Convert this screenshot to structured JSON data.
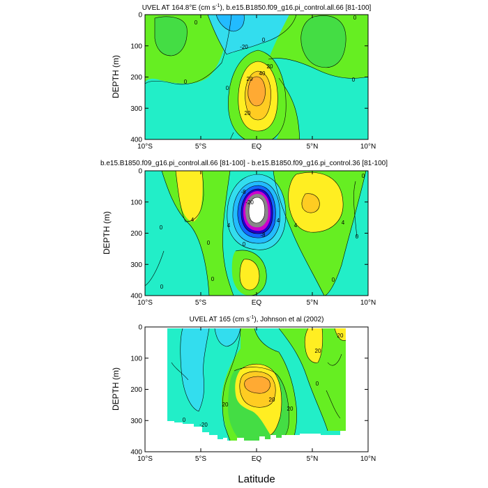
{
  "colors": {
    "green": "#66EE22",
    "light_green": "#44DD44",
    "cyan": "#22EEC8",
    "light_blue": "#33DDEE",
    "sky": "#22BBFF",
    "blue": "#1166FF",
    "dark_blue": "#2200CC",
    "magenta": "#CC00CC",
    "gray": "#888888",
    "white": "#FFFFFF",
    "yellow": "#FFEE22",
    "gold": "#FFCC22",
    "orange": "#FFAA33",
    "dark_orange": "#EE8833"
  },
  "x_axis_label": "Latitude",
  "chart_data": [
    {
      "type": "contour",
      "title": "UVEL AT 164.8°E (cm s⁻¹), b.e15.B1850.f09_g16.pi_control.all.66 [81-100]",
      "title_parts": {
        "a": "UVEL AT 164.8°E (cm s",
        "sup": "-1",
        "b": "), b.e15.B1850.f09_g16.pi_control.all.66 [81-100]"
      },
      "ylabel": "DEPTH (m)",
      "x_ticks": [
        "10°S",
        "5°S",
        "EQ",
        "5°N",
        "10°N"
      ],
      "y_ticks": [
        "0",
        "100",
        "200",
        "300",
        "400"
      ],
      "xlim": [
        -10,
        10
      ],
      "ylim": [
        400,
        0
      ],
      "contour_labels": [
        "0",
        "-20",
        "0",
        "20",
        "40",
        "20",
        "0",
        "20",
        "0"
      ]
    },
    {
      "type": "contour",
      "title": "b.e15.B1850.f09_g16.pi_control.all.66 [81-100] - b.e15.B1850.f09_g16.pi_control.36 [81-100]",
      "ylabel": "DEPTH (m)",
      "x_ticks": [
        "10°S",
        "5°S",
        "EQ",
        "5°N",
        "10°N"
      ],
      "y_ticks": [
        "0",
        "100",
        "200",
        "300",
        "400"
      ],
      "xlim": [
        -10,
        10
      ],
      "ylim": [
        400,
        0
      ],
      "contour_labels": [
        "4",
        "0",
        "0",
        "4",
        "-8",
        "-20",
        "4",
        "-8",
        "0",
        "4",
        "4",
        "0",
        "0",
        "0",
        "0",
        "0"
      ]
    },
    {
      "type": "contour",
      "title": "UVEL AT 165 (cm s⁻¹), Johnson et al (2002)",
      "title_parts": {
        "a": "UVEL AT 165 (cm s",
        "sup": "-1",
        "b": "), Johnson et al (2002)"
      },
      "ylabel": "DEPTH (m)",
      "x_ticks": [
        "10°S",
        "5°S",
        "EQ",
        "5°N",
        "10°N"
      ],
      "y_ticks": [
        "0",
        "100",
        "200",
        "300",
        "400"
      ],
      "xlim": [
        -10,
        10
      ],
      "ylim": [
        400,
        0
      ],
      "contour_labels": [
        "-20",
        "20",
        "20",
        "0",
        "20",
        "20",
        "0"
      ]
    }
  ]
}
